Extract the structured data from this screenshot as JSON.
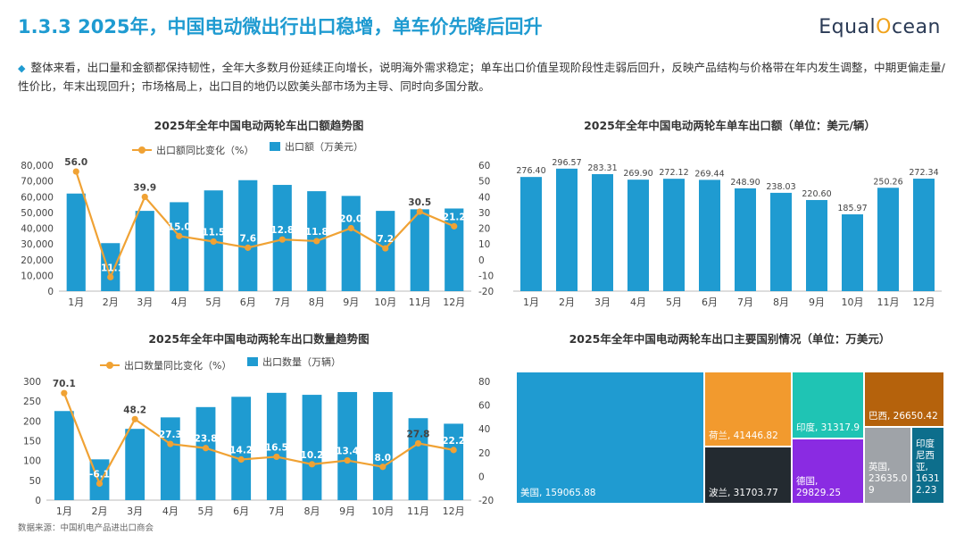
{
  "header": {
    "title": "1.3.3 2025年，中国电动微出行出口稳增，单车价先降后回升",
    "logo_text_a": "Equal",
    "logo_text_b": "O",
    "logo_text_c": "cean"
  },
  "summary": "整体来看，出口量和金额都保持韧性，全年大多数月份延续正向增长，说明海外需求稳定；单车出口价值呈现阶段性走弱后回升，反映产品结构与价格带在年内发生调整，中期更偏走量/性价比，年末出现回升；市场格局上，出口目的地仍以欧美头部市场为主导、同时向多国分散。",
  "colors": {
    "accent": "#1f9bd1",
    "line": "#f0a234"
  },
  "source": "数据来源：中国机电产品进出口商会",
  "chart_data": [
    {
      "type": "bar+line",
      "title": "2025年全年中国电动两轮车出口额趋势图",
      "categories": [
        "1月",
        "2月",
        "3月",
        "4月",
        "5月",
        "6月",
        "7月",
        "8月",
        "9月",
        "10月",
        "11月",
        "12月"
      ],
      "series": [
        {
          "name": "出口额（万美元）",
          "type": "bar",
          "axis": "left",
          "values": [
            62000,
            30500,
            51000,
            56500,
            64000,
            70500,
            67500,
            63500,
            60500,
            51000,
            52000,
            52500
          ]
        },
        {
          "name": "出口额同比变化（%）",
          "type": "line",
          "axis": "right",
          "values": [
            56.0,
            -11.1,
            39.9,
            15.0,
            11.5,
            7.6,
            12.8,
            11.8,
            20.0,
            7.2,
            30.5,
            21.2
          ]
        }
      ],
      "ylim_left": [
        0,
        80000
      ],
      "yticks_left": [
        0,
        10000,
        20000,
        30000,
        40000,
        50000,
        60000,
        70000,
        80000
      ],
      "ytick_labels_left": [
        "0",
        "10,000",
        "20,000",
        "30,000",
        "40,000",
        "50,000",
        "60,000",
        "70,000",
        "80,000"
      ],
      "ylim_right": [
        -20,
        60
      ],
      "yticks_right": [
        -20,
        -10,
        0,
        10,
        20,
        30,
        40,
        50,
        60
      ],
      "line_labels": [
        "56.0",
        "-11.1",
        "39.9",
        "15.0",
        "11.5",
        "7.6",
        "12.8",
        "11.8",
        "20.0",
        "7.2",
        "30.5",
        "21.2"
      ]
    },
    {
      "type": "bar",
      "title": "2025年全年中国电动两轮车单车出口额（单位：美元/辆）",
      "categories": [
        "1月",
        "2月",
        "3月",
        "4月",
        "5月",
        "6月",
        "7月",
        "8月",
        "9月",
        "10月",
        "11月",
        "12月"
      ],
      "values": [
        276.4,
        296.57,
        283.31,
        269.9,
        272.12,
        269.44,
        248.9,
        238.03,
        220.6,
        185.97,
        250.26,
        272.34
      ],
      "value_labels": [
        "276.40",
        "296.57",
        "283.31",
        "269.90",
        "272.12",
        "269.44",
        "248.90",
        "238.03",
        "220.60",
        "185.97",
        "250.26",
        "272.34"
      ],
      "ylim": [
        0,
        320
      ]
    },
    {
      "type": "bar+line",
      "title": "2025年全年中国电动两轮车出口数量趋势图",
      "categories": [
        "1月",
        "2月",
        "3月",
        "4月",
        "5月",
        "6月",
        "7月",
        "8月",
        "9月",
        "10月",
        "11月",
        "12月"
      ],
      "series": [
        {
          "name": "出口数量（万辆）",
          "type": "bar",
          "axis": "left",
          "values": [
            225,
            103,
            180,
            209,
            235,
            261,
            271,
            266,
            273,
            273,
            207,
            193
          ]
        },
        {
          "name": "出口数量同比变化（%）",
          "type": "line",
          "axis": "right",
          "values": [
            70.1,
            -6.1,
            48.2,
            27.3,
            23.8,
            14.2,
            16.5,
            10.2,
            13.4,
            8.0,
            27.8,
            22.2
          ]
        }
      ],
      "ylim_left": [
        0,
        300
      ],
      "yticks_left": [
        0,
        50,
        100,
        150,
        200,
        250,
        300
      ],
      "ytick_labels_left": [
        "0",
        "50",
        "100",
        "150",
        "200",
        "250",
        "300"
      ],
      "ylim_right": [
        -20,
        80
      ],
      "yticks_right": [
        -20,
        0,
        20,
        40,
        60,
        80
      ],
      "line_labels": [
        "70.1",
        "-6.1",
        "48.2",
        "27.3",
        "23.8",
        "14.2",
        "16.5",
        "10.2",
        "13.4",
        "8.0",
        "27.8",
        "22.2"
      ]
    },
    {
      "type": "treemap",
      "title": "2025年全年中国电动两轮车出口主要国别情况（单位：万美元）",
      "items": [
        {
          "name": "美国",
          "value": 159065.88,
          "label": "美国, 159065.88",
          "color": "#1f9bd1"
        },
        {
          "name": "荷兰",
          "value": 41446.82,
          "label": "荷兰, 41446.82",
          "color": "#f29a2e"
        },
        {
          "name": "波兰",
          "value": 31703.77,
          "label": "波兰, 31703.77",
          "color": "#232a30"
        },
        {
          "name": "印度",
          "value": 31317.9,
          "label": "印度, 31317.9",
          "color": "#1fc4b4"
        },
        {
          "name": "德国",
          "value": 29829.25,
          "label": "德国, 29829.25",
          "color": "#8a2be2"
        },
        {
          "name": "巴西",
          "value": 26650.42,
          "label": "巴西, 26650.42",
          "color": "#b5620c"
        },
        {
          "name": "英国",
          "value": 23635.09,
          "label": "英国, 23635.0 9",
          "color": "#9fa3a8"
        },
        {
          "name": "印度尼西亚",
          "value": 16312.23,
          "label": "印度 尼西 亚, 1631 2.23",
          "color": "#0d6e8c"
        }
      ]
    }
  ]
}
